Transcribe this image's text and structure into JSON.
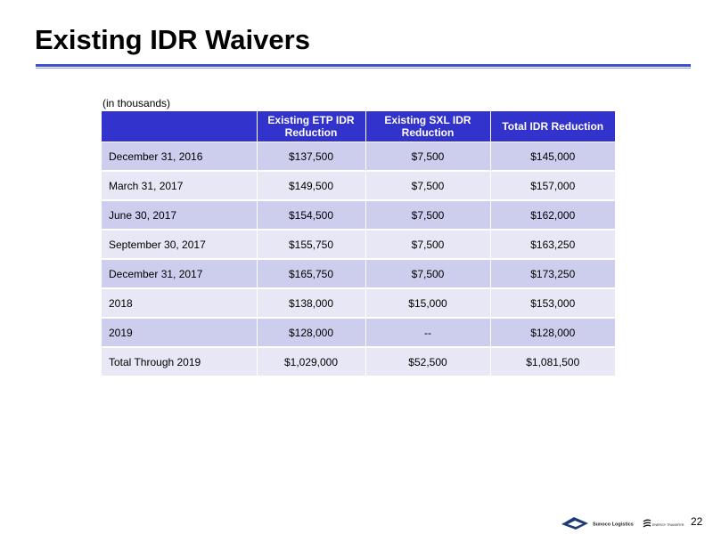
{
  "slide": {
    "title": "Existing IDR Waivers",
    "page_number": "22"
  },
  "table": {
    "units_note": "(in thousands)",
    "headers": [
      "",
      "Existing ETP IDR Reduction",
      "Existing SXL IDR Reduction",
      "Total IDR Reduction"
    ],
    "rows": [
      {
        "period": "December 31, 2016",
        "etp": "$137,500",
        "sxl": "$7,500",
        "total": "$145,000"
      },
      {
        "period": "March 31, 2017",
        "etp": "$149,500",
        "sxl": "$7,500",
        "total": "$157,000"
      },
      {
        "period": "June 30, 2017",
        "etp": "$154,500",
        "sxl": "$7,500",
        "total": "$162,000"
      },
      {
        "period": "September 30, 2017",
        "etp": "$155,750",
        "sxl": "$7,500",
        "total": "$163,250"
      },
      {
        "period": "December 31, 2017",
        "etp": "$165,750",
        "sxl": "$7,500",
        "total": "$173,250"
      },
      {
        "period": "2018",
        "etp": "$138,000",
        "sxl": "$15,000",
        "total": "$153,000"
      },
      {
        "period": "2019",
        "etp": "$128,000",
        "sxl": "--",
        "total": "$128,000"
      },
      {
        "period": "Total Through 2019",
        "etp": "$1,029,000",
        "sxl": "$52,500",
        "total": "$1,081,500"
      }
    ]
  },
  "footer": {
    "sunoco_logo_text": "Sunoco Logistics",
    "energy_transfer_logo_text": "ENERGY TRANSFER"
  },
  "colors": {
    "title_rule": "#3d51d6",
    "header_fill": "#3232cc",
    "row_dark": "#cdcdee",
    "row_light": "#e7e7f6",
    "sunoco_logo": "#1c3a78"
  }
}
